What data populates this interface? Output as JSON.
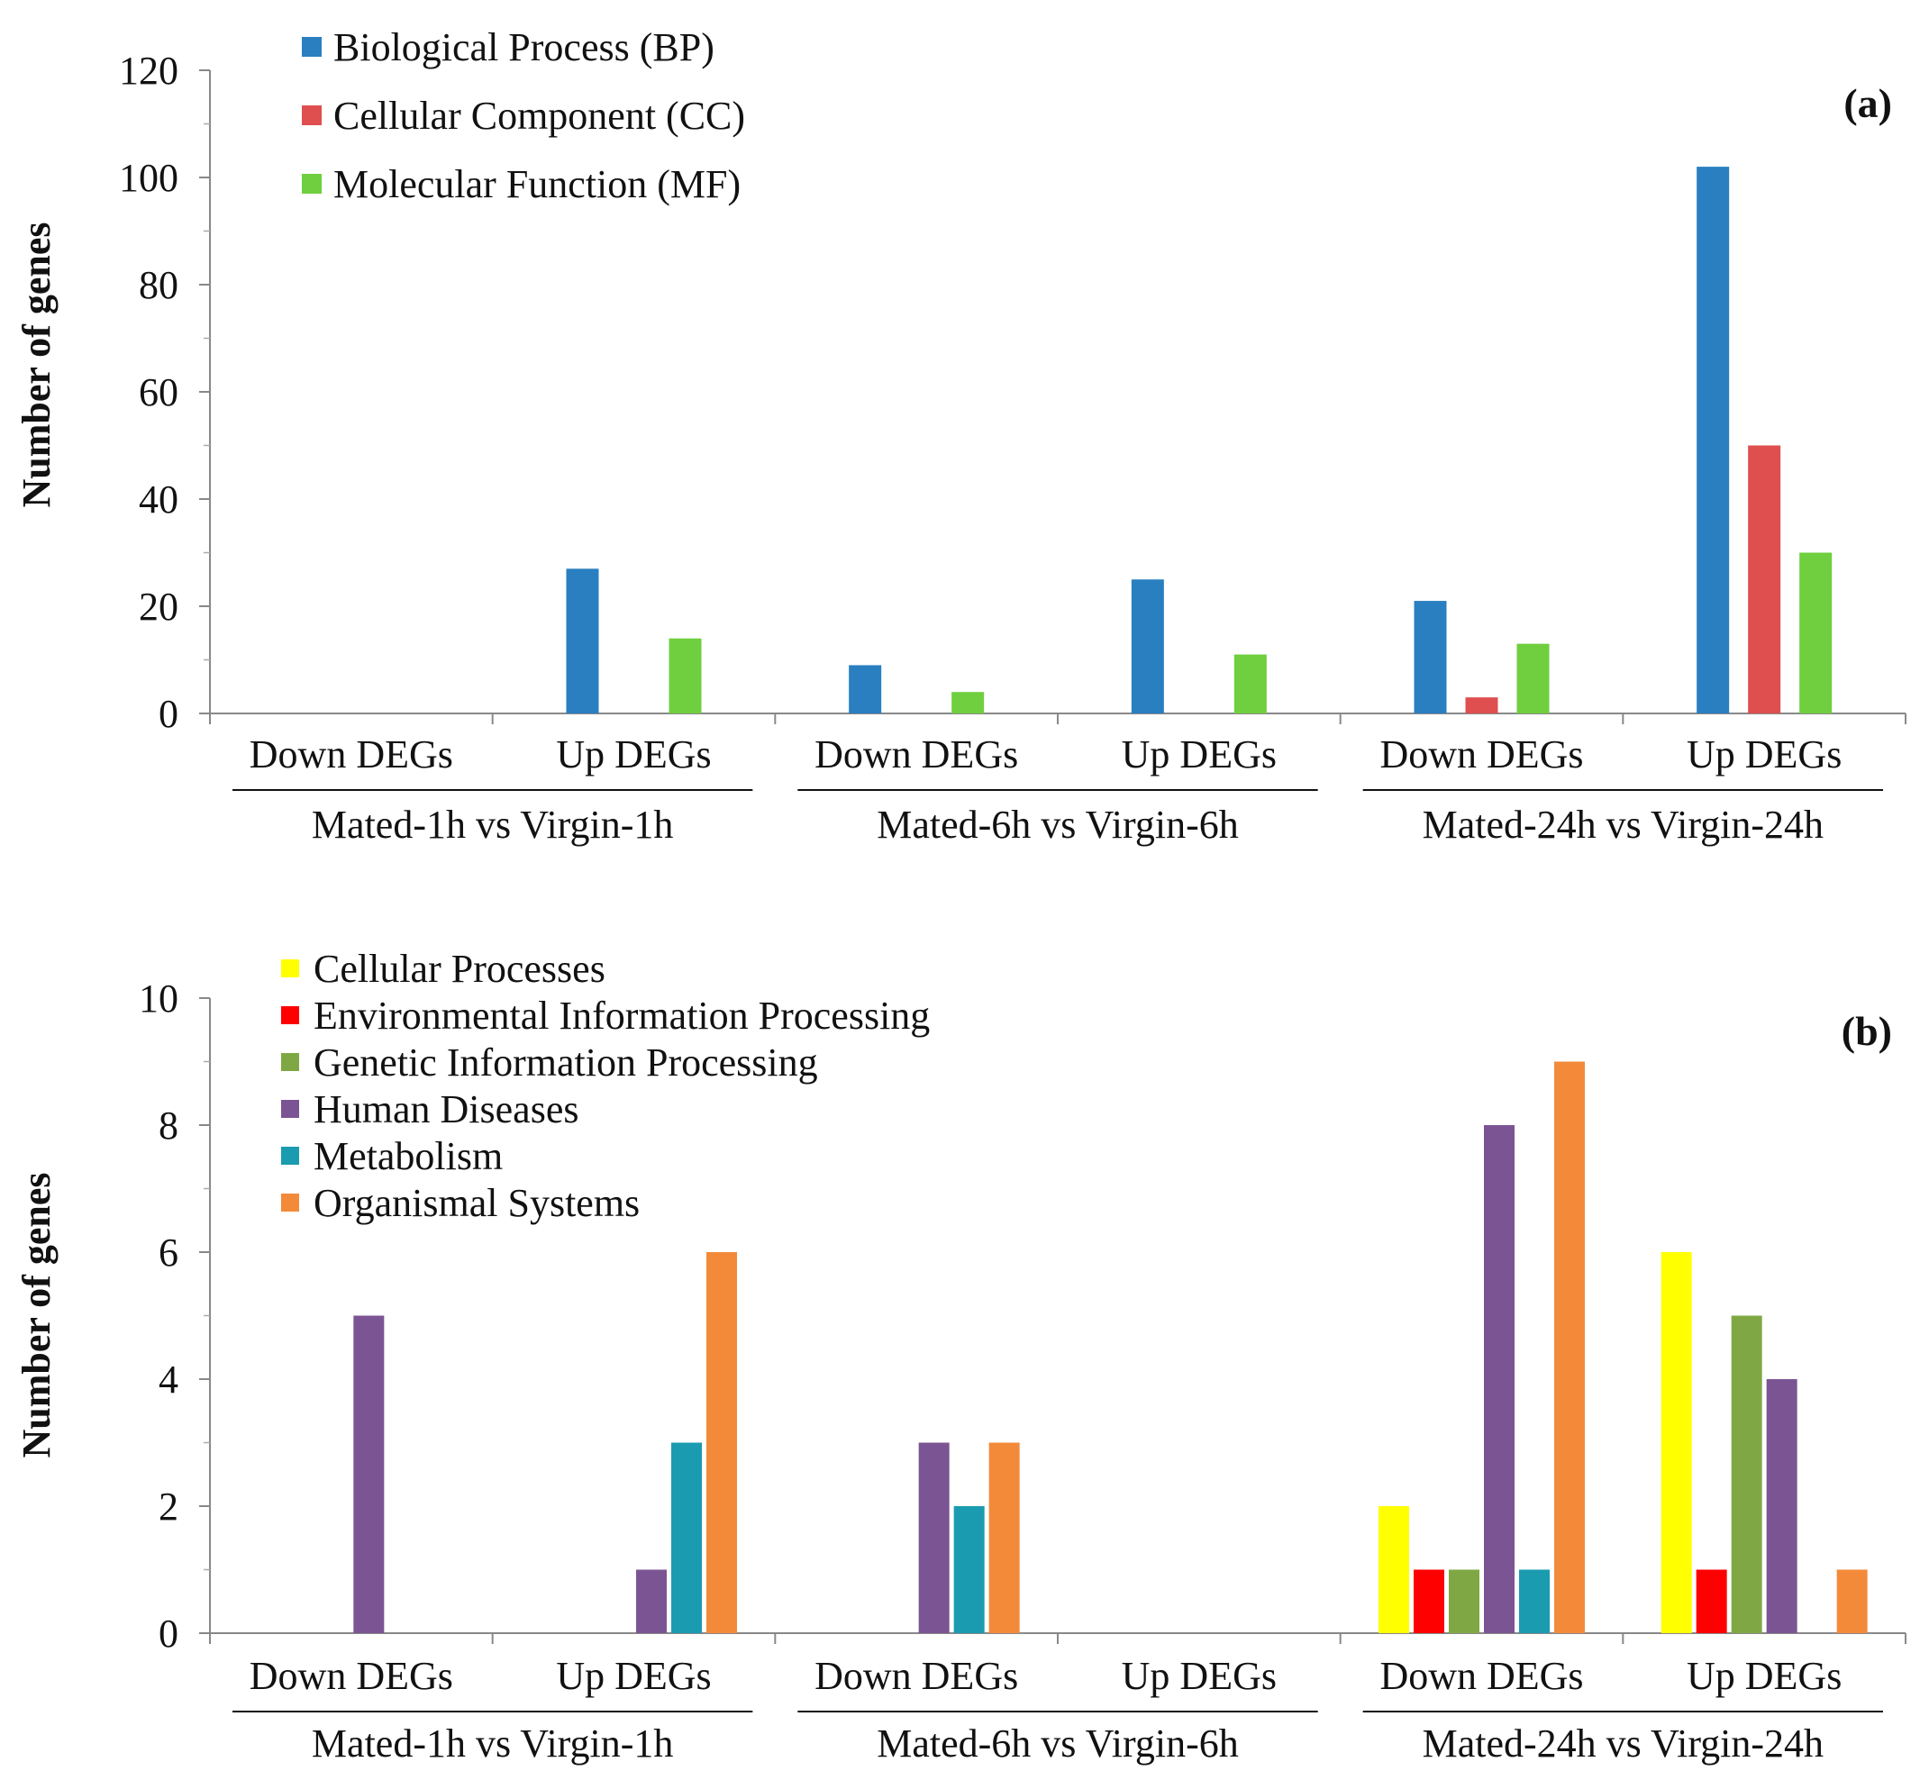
{
  "chart_data": [
    {
      "type": "bar",
      "panel_label": "(a)",
      "ylabel": "Number of genes",
      "ylim": [
        0,
        120
      ],
      "yticks": [
        "0",
        "20",
        "40",
        "60",
        "80",
        "100",
        "120"
      ],
      "categories": [
        "Down DEGs",
        "Up DEGs",
        "Down DEGs",
        "Up DEGs",
        "Down DEGs",
        "Up DEGs"
      ],
      "groups": [
        "Mated-1h vs Virgin-1h",
        "Mated-6h vs Virgin-6h",
        "Mated-24h vs Virgin-24h"
      ],
      "legend_position": "top-left",
      "series": [
        {
          "name": "Biological Process (BP)",
          "color": "#2a7fc1",
          "values": [
            0,
            27,
            9,
            25,
            21,
            102
          ]
        },
        {
          "name": "Cellular Component (CC)",
          "color": "#df4f4f",
          "values": [
            0,
            0,
            0,
            0,
            3,
            50
          ]
        },
        {
          "name": "Molecular Function (MF)",
          "color": "#6fcf3f",
          "values": [
            0,
            14,
            4,
            11,
            13,
            30
          ]
        }
      ]
    },
    {
      "type": "bar",
      "panel_label": "(b)",
      "ylabel": "Number of genes",
      "ylim": [
        0,
        10
      ],
      "yticks": [
        "0",
        "2",
        "4",
        "6",
        "8",
        "10"
      ],
      "categories": [
        "Down DEGs",
        "Up DEGs",
        "Down DEGs",
        "Up DEGs",
        "Down DEGs",
        "Up DEGs"
      ],
      "groups": [
        "Mated-1h vs Virgin-1h",
        "Mated-6h vs Virgin-6h",
        "Mated-24h vs Virgin-24h"
      ],
      "legend_position": "top-left",
      "series": [
        {
          "name": "Cellular Processes",
          "color": "#ffff00",
          "values": [
            0,
            0,
            0,
            0,
            2,
            6
          ]
        },
        {
          "name": "Environmental Information Processing",
          "color": "#ff0000",
          "values": [
            0,
            0,
            0,
            0,
            1,
            1
          ]
        },
        {
          "name": "Genetic Information Processing",
          "color": "#7fa845",
          "values": [
            0,
            0,
            0,
            0,
            1,
            5
          ]
        },
        {
          "name": "Human Diseases",
          "color": "#7b5593",
          "values": [
            5,
            1,
            3,
            0,
            8,
            4
          ]
        },
        {
          "name": "Metabolism",
          "color": "#1a9bb0",
          "values": [
            0,
            3,
            2,
            0,
            1,
            0
          ]
        },
        {
          "name": "Organismal Systems",
          "color": "#f38a3a",
          "values": [
            0,
            6,
            3,
            0,
            9,
            1
          ]
        }
      ]
    }
  ]
}
